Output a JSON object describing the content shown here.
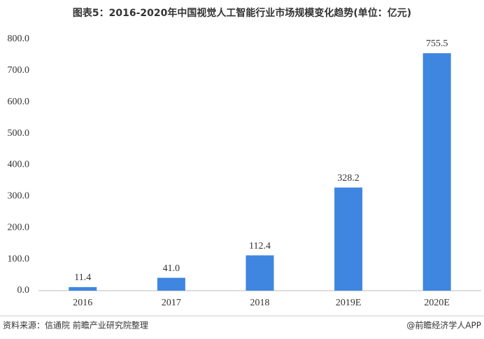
{
  "chart_data": {
    "type": "bar",
    "title": "图表5：2016-2020年中国视觉人工智能行业市场规模变化趋势(单位：亿元)",
    "categories": [
      "2016",
      "2017",
      "2018",
      "2019E",
      "2020E"
    ],
    "values": [
      11.4,
      41.0,
      112.4,
      328.2,
      755.5
    ],
    "value_labels": [
      "11.4",
      "41.0",
      "112.4",
      "328.2",
      "755.5"
    ],
    "color": "#3f86e0",
    "ylim": [
      0,
      800
    ],
    "yticks": [
      {
        "value": 0,
        "label": "0.0"
      },
      {
        "value": 100,
        "label": "100.0"
      },
      {
        "value": 200,
        "label": "200.0"
      },
      {
        "value": 300,
        "label": "300.0"
      },
      {
        "value": 400,
        "label": "400.0"
      },
      {
        "value": 500,
        "label": "500.0"
      },
      {
        "value": 600,
        "label": "600.0"
      },
      {
        "value": 700,
        "label": "700.0"
      },
      {
        "value": 800,
        "label": "800.0"
      }
    ],
    "grid": false,
    "source": "资料来源：信通院 前瞻产业研究院整理",
    "credit": "@前瞻经济学人APP"
  }
}
